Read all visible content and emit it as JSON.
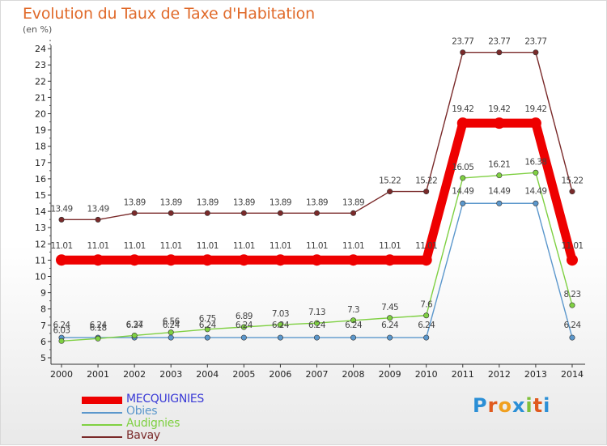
{
  "chart_data": {
    "type": "line",
    "title": "Evolution du Taux de Taxe d'Habitation",
    "unit_label": "(en %)",
    "x": [
      "2000",
      "2001",
      "2002",
      "2003",
      "2004",
      "2005",
      "2006",
      "2007",
      "2008",
      "2009",
      "2010",
      "2011",
      "2012",
      "2013",
      "2014"
    ],
    "ylim": [
      5,
      24
    ],
    "yticks": [
      5,
      6,
      7,
      8,
      9,
      10,
      11,
      12,
      13,
      14,
      15,
      16,
      17,
      18,
      19,
      20,
      21,
      22,
      23,
      24
    ],
    "grid": false,
    "legend_position": "bottom-left",
    "series": [
      {
        "name": "MECQUIGNIES",
        "color": "#ee0000",
        "values": [
          11.01,
          11.01,
          11.01,
          11.01,
          11.01,
          11.01,
          11.01,
          11.01,
          11.01,
          11.01,
          11.01,
          19.42,
          19.42,
          19.42,
          11.01
        ],
        "labels": [
          "11.01",
          "11.01",
          "11.01",
          "11.01",
          "11.01",
          "11.01",
          "11.01",
          "11.01",
          "11.01",
          "11.01",
          "11.01",
          "19.42",
          "19.42",
          "19.42",
          "11.01"
        ]
      },
      {
        "name": "Obies",
        "color": "#5b97cc",
        "values": [
          6.24,
          6.24,
          6.24,
          6.24,
          6.24,
          6.24,
          6.24,
          6.24,
          6.24,
          6.24,
          6.24,
          14.49,
          14.49,
          14.49,
          6.24
        ],
        "labels": [
          "6.24",
          "6.24",
          "6.24",
          "6.24",
          "6.24",
          "6.24",
          "6.24",
          "6.24",
          "6.24",
          "6.24",
          "6.24",
          "14.49",
          "14.49",
          "14.49",
          "6.24"
        ]
      },
      {
        "name": "Audignies",
        "color": "#7fd042",
        "values": [
          6.03,
          6.18,
          6.37,
          6.56,
          6.75,
          6.89,
          7.03,
          7.13,
          7.3,
          7.45,
          7.6,
          16.05,
          16.21,
          16.38,
          8.23
        ],
        "labels": [
          "6.03",
          "6.18",
          "6.37",
          "6.56",
          "6.75",
          "6.89",
          "7.03",
          "7.13",
          "7.3",
          "7.45",
          "7.6",
          "16.05",
          "16.21",
          "16.38",
          "8.23"
        ]
      },
      {
        "name": "Bavay",
        "color": "#7a2a2a",
        "values": [
          13.49,
          13.49,
          13.89,
          13.89,
          13.89,
          13.89,
          13.89,
          13.89,
          13.89,
          15.22,
          15.22,
          23.77,
          23.77,
          23.77,
          15.22
        ],
        "labels": [
          "13.49",
          "13.49",
          "13.89",
          "13.89",
          "13.89",
          "13.89",
          "13.89",
          "13.89",
          "13.89",
          "15.22",
          "15.22",
          "23.77",
          "23.77",
          "23.77",
          "15.22"
        ]
      }
    ]
  },
  "brand": {
    "letters": [
      "P",
      "r",
      "o",
      "x",
      "i",
      "t",
      "i"
    ],
    "colors": [
      "#2b8fd6",
      "#e05a1e",
      "#f0a020",
      "#2b8fd6",
      "#7fc03a",
      "#e05a1e",
      "#2b8fd6"
    ]
  }
}
